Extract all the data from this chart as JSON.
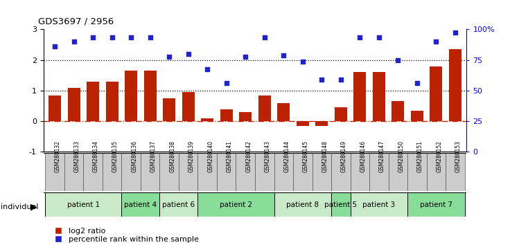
{
  "title": "GDS3697 / 2956",
  "samples": [
    "GSM280132",
    "GSM280133",
    "GSM280134",
    "GSM280135",
    "GSM280136",
    "GSM280137",
    "GSM280138",
    "GSM280139",
    "GSM280140",
    "GSM280141",
    "GSM280142",
    "GSM280143",
    "GSM280144",
    "GSM280145",
    "GSM280148",
    "GSM280149",
    "GSM280146",
    "GSM280147",
    "GSM280150",
    "GSM280151",
    "GSM280152",
    "GSM280153"
  ],
  "log2_ratio": [
    0.85,
    1.1,
    1.3,
    1.3,
    1.65,
    1.65,
    0.75,
    0.95,
    0.1,
    0.4,
    0.3,
    0.85,
    0.6,
    -0.15,
    -0.15,
    0.45,
    1.6,
    1.6,
    0.65,
    0.35,
    1.8,
    2.35
  ],
  "percentile": [
    2.45,
    2.6,
    2.75,
    2.75,
    2.75,
    2.75,
    2.1,
    2.2,
    1.7,
    1.25,
    2.1,
    2.75,
    2.15,
    1.95,
    1.35,
    1.35,
    2.75,
    2.75,
    2.0,
    1.25,
    2.6,
    2.9
  ],
  "patient_groups": [
    {
      "label": "patient 1",
      "start": 0,
      "end": 4,
      "shade": 0
    },
    {
      "label": "patient 4",
      "start": 4,
      "end": 6,
      "shade": 1
    },
    {
      "label": "patient 6",
      "start": 6,
      "end": 8,
      "shade": 0
    },
    {
      "label": "patient 2",
      "start": 8,
      "end": 12,
      "shade": 1
    },
    {
      "label": "patient 8",
      "start": 12,
      "end": 15,
      "shade": 0
    },
    {
      "label": "patient 5",
      "start": 15,
      "end": 16,
      "shade": 1
    },
    {
      "label": "patient 3",
      "start": 16,
      "end": 19,
      "shade": 0
    },
    {
      "label": "patient 7",
      "start": 19,
      "end": 22,
      "shade": 1
    }
  ],
  "bar_color": "#bb2200",
  "scatter_color": "#2222cc",
  "ylim": [
    -1,
    3
  ],
  "yticks": [
    -1,
    0,
    1,
    2,
    3
  ],
  "right_ytick_vals": [
    0,
    25,
    50,
    75,
    100
  ],
  "right_ytick_labels": [
    "0",
    "25",
    "50",
    "75",
    "100%"
  ],
  "hline_y": [
    1,
    2
  ],
  "zero_line_color": "#cc2200",
  "sample_cell_color": "#cccccc",
  "sample_cell_edge": "#555555",
  "patient_colors": [
    "#c8eac8",
    "#88dd99"
  ],
  "legend_bar_label": "log2 ratio",
  "legend_scatter_label": "percentile rank within the sample"
}
